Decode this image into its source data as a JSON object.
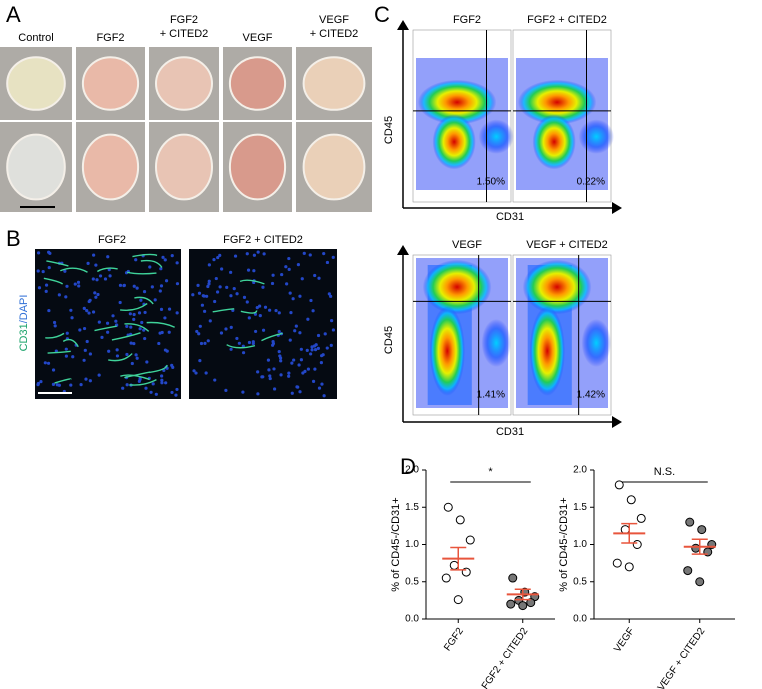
{
  "panel_labels": [
    "A",
    "B",
    "C",
    "D"
  ],
  "panel_a": {
    "columns": [
      [
        "Control"
      ],
      [
        "FGF2"
      ],
      [
        "FGF2",
        "+ CITED2"
      ],
      [
        "VEGF"
      ],
      [
        "VEGF",
        "+ CITED2"
      ]
    ]
  },
  "panel_b": {
    "columns": [
      "FGF2",
      "FGF2 + CITED2"
    ],
    "stain": [
      "CD31",
      "/DAPI"
    ]
  },
  "panel_c": {
    "y_label": "CD45",
    "x_label": "CD31",
    "plots": [
      {
        "title": "FGF2",
        "percent": "1.50%"
      },
      {
        "title": "FGF2 + CITED2",
        "percent": "0.22%"
      },
      {
        "title": "VEGF",
        "percent": "1.41%"
      },
      {
        "title": "VEGF + CITED2",
        "percent": "1.42%"
      }
    ]
  },
  "chart_data": [
    {
      "type": "dot",
      "y_label": "% of CD45-/CD31+",
      "annotation": "*",
      "categories": [
        "FGF2",
        "FGF2 + CITED2"
      ],
      "points": [
        [
          1.5,
          1.33,
          1.06,
          0.72,
          0.63,
          0.55,
          0.26
        ],
        [
          0.55,
          0.36,
          0.3,
          0.25,
          0.22,
          0.2,
          0.18
        ]
      ],
      "means": [
        0.81,
        0.33
      ],
      "sems": [
        0.15,
        0.07
      ],
      "point_fills": [
        "#ffffff",
        "#777777"
      ],
      "mean_color": "#e8553c",
      "ylim": [
        0,
        2
      ],
      "yticks": [
        {
          "value": 0,
          "label": "0.0"
        },
        0.5,
        {
          "value": 1,
          "label": "1.0"
        },
        1.5,
        {
          "value": 2,
          "label": "2.0"
        }
      ]
    },
    {
      "type": "dot",
      "y_label": "% of CD45-/CD31+",
      "annotation": "N.S.",
      "categories": [
        "VEGF",
        "VEGF + CITED2"
      ],
      "points": [
        [
          1.8,
          1.6,
          1.35,
          1.2,
          1.0,
          0.75,
          0.7
        ],
        [
          1.3,
          1.2,
          1.0,
          0.95,
          0.9,
          0.65,
          0.5
        ]
      ],
      "means": [
        1.15,
        0.97
      ],
      "sems": [
        0.13,
        0.1
      ],
      "point_fills": [
        "#ffffff",
        "#777777"
      ],
      "mean_color": "#e8553c",
      "ylim": [
        0,
        2
      ],
      "yticks": [
        {
          "value": 0,
          "label": "0.0"
        },
        0.5,
        {
          "value": 1,
          "label": "1.0"
        },
        1.5,
        {
          "value": 2,
          "label": "2.0"
        }
      ]
    }
  ]
}
